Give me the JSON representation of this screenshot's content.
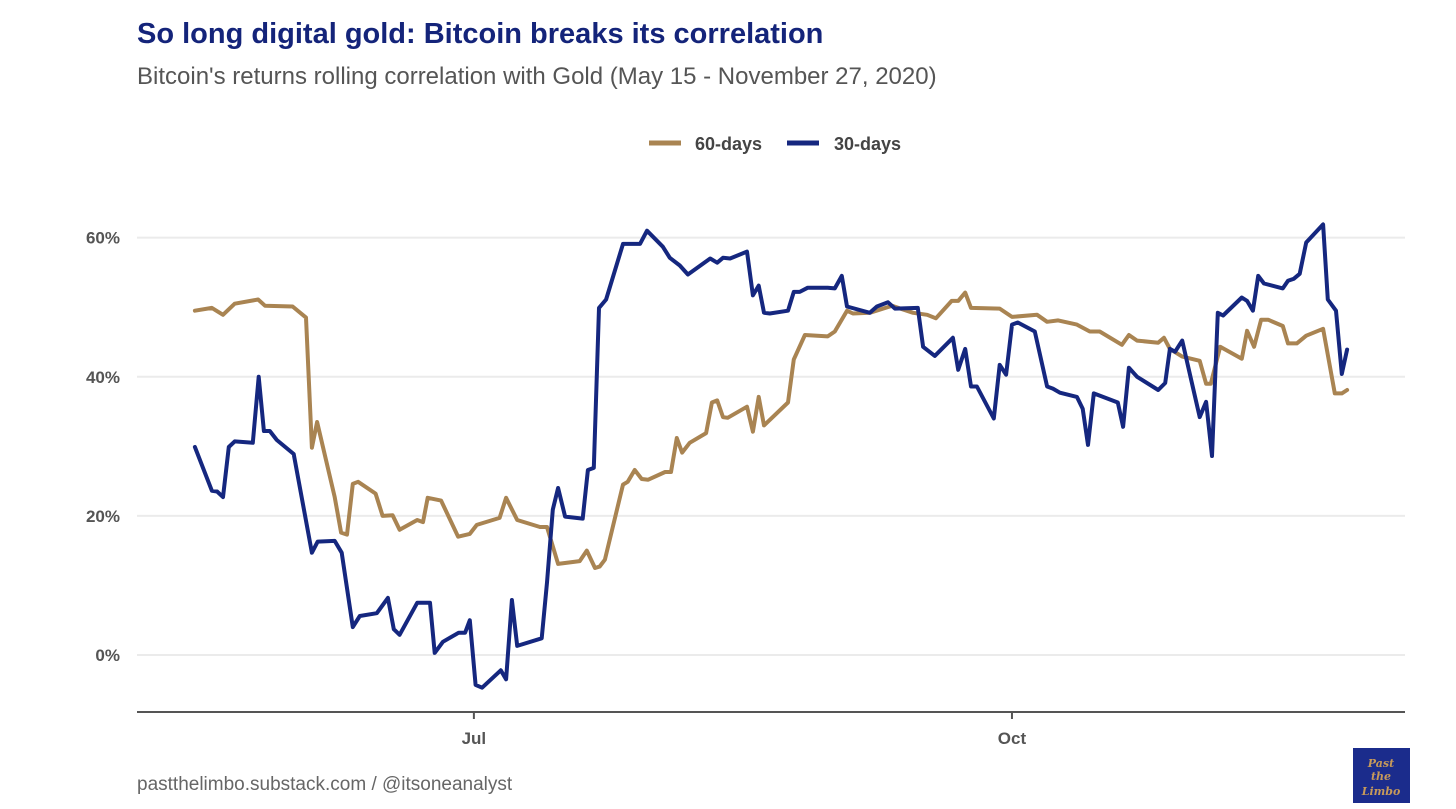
{
  "chart_data": {
    "type": "line",
    "title": "So long digital gold: Bitcoin breaks its correlation",
    "subtitle": "Bitcoin's returns rolling correlation with Gold (May 15 - November 27, 2020)",
    "xlabel": "",
    "ylabel": "",
    "x_unit": "days since 2020-05-15",
    "xlim": [
      -10.6,
      206.2
    ],
    "ylim": [
      -8.2,
      68
    ],
    "x_ticks": [
      {
        "value": 47,
        "label": "Jul"
      },
      {
        "value": 139,
        "label": "Oct"
      }
    ],
    "y_ticks": [
      {
        "value": 0,
        "label": "0%"
      },
      {
        "value": 20,
        "label": "20%"
      },
      {
        "value": 40,
        "label": "40%"
      },
      {
        "value": 60,
        "label": "60%"
      }
    ],
    "grid": "horizontal",
    "legend_position": "top-center",
    "colors": {
      "title": "#14247a",
      "gold60": "#a98452",
      "blue30": "#15277f",
      "grid": "#ebebeb",
      "axis": "#555555"
    },
    "series": [
      {
        "name": "60-days",
        "color": "#a98452",
        "points": [
          [
            -0.7,
            49.5
          ],
          [
            2.2,
            49.9
          ],
          [
            4.1,
            48.9
          ],
          [
            6.1,
            50.5
          ],
          [
            10.1,
            51.1
          ],
          [
            11.3,
            50.2
          ],
          [
            16.0,
            50.1
          ],
          [
            18.3,
            48.5
          ],
          [
            19.3,
            29.8
          ],
          [
            20.2,
            33.5
          ],
          [
            23.2,
            22.7
          ],
          [
            24.3,
            17.6
          ],
          [
            25.3,
            17.3
          ],
          [
            26.3,
            24.6
          ],
          [
            27.2,
            24.9
          ],
          [
            30.2,
            23.2
          ],
          [
            31.4,
            20.0
          ],
          [
            33.1,
            20.1
          ],
          [
            34.3,
            18.0
          ],
          [
            37.3,
            19.4
          ],
          [
            38.3,
            19.1
          ],
          [
            39.1,
            22.6
          ],
          [
            41.4,
            22.2
          ],
          [
            44.3,
            17.0
          ],
          [
            46.3,
            17.4
          ],
          [
            47.5,
            18.7
          ],
          [
            51.4,
            19.7
          ],
          [
            52.5,
            22.6
          ],
          [
            54.4,
            19.4
          ],
          [
            58.3,
            18.4
          ],
          [
            59.5,
            18.4
          ],
          [
            61.4,
            13.1
          ],
          [
            65.1,
            13.5
          ],
          [
            66.3,
            15.0
          ],
          [
            67.7,
            12.5
          ],
          [
            68.5,
            12.7
          ],
          [
            69.4,
            13.7
          ],
          [
            72.5,
            24.5
          ],
          [
            73.3,
            24.9
          ],
          [
            74.5,
            26.6
          ],
          [
            75.7,
            25.3
          ],
          [
            76.8,
            25.2
          ],
          [
            79.7,
            26.3
          ],
          [
            80.7,
            26.3
          ],
          [
            81.7,
            31.2
          ],
          [
            82.6,
            29.1
          ],
          [
            83.9,
            30.5
          ],
          [
            86.7,
            31.9
          ],
          [
            87.7,
            36.3
          ],
          [
            88.6,
            36.6
          ],
          [
            89.6,
            34.2
          ],
          [
            90.4,
            34.1
          ],
          [
            93.7,
            35.7
          ],
          [
            94.7,
            32.1
          ],
          [
            95.7,
            37.1
          ],
          [
            96.6,
            33.0
          ],
          [
            100.7,
            36.3
          ],
          [
            101.7,
            42.5
          ],
          [
            103.6,
            46.0
          ],
          [
            107.5,
            45.8
          ],
          [
            108.7,
            46.5
          ],
          [
            110.8,
            49.5
          ],
          [
            111.8,
            49.1
          ],
          [
            114.7,
            49.2
          ],
          [
            118.5,
            50.2
          ],
          [
            122.1,
            49.2
          ],
          [
            124.5,
            48.9
          ],
          [
            126.0,
            48.4
          ],
          [
            128.7,
            50.9
          ],
          [
            129.8,
            50.9
          ],
          [
            131.0,
            52.1
          ],
          [
            132.0,
            49.9
          ],
          [
            136.9,
            49.8
          ],
          [
            139.0,
            48.6
          ],
          [
            143.3,
            48.9
          ],
          [
            145.0,
            47.9
          ],
          [
            146.9,
            48.1
          ],
          [
            150.1,
            47.5
          ],
          [
            152.3,
            46.5
          ],
          [
            154.0,
            46.5
          ],
          [
            157.8,
            44.6
          ],
          [
            159.0,
            46.0
          ],
          [
            160.4,
            45.2
          ],
          [
            164.0,
            44.9
          ],
          [
            165.0,
            45.6
          ],
          [
            166.0,
            44.0
          ],
          [
            168.1,
            42.9
          ],
          [
            171.1,
            42.3
          ],
          [
            172.2,
            39.0
          ],
          [
            173.0,
            39.0
          ],
          [
            174.6,
            44.3
          ],
          [
            178.3,
            42.6
          ],
          [
            179.2,
            46.6
          ],
          [
            180.4,
            44.3
          ],
          [
            181.6,
            48.2
          ],
          [
            182.8,
            48.2
          ],
          [
            185.3,
            47.3
          ],
          [
            186.2,
            44.8
          ],
          [
            187.7,
            44.8
          ],
          [
            189.3,
            45.9
          ],
          [
            192.2,
            46.9
          ],
          [
            194.2,
            37.6
          ],
          [
            195.4,
            37.6
          ],
          [
            196.3,
            38.1
          ]
        ]
      },
      {
        "name": "30-days",
        "color": "#15277f",
        "points": [
          [
            -0.7,
            29.9
          ],
          [
            2.2,
            23.6
          ],
          [
            3.1,
            23.5
          ],
          [
            4.1,
            22.7
          ],
          [
            5.1,
            29.9
          ],
          [
            6.1,
            30.7
          ],
          [
            9.2,
            30.5
          ],
          [
            10.2,
            40.0
          ],
          [
            11.1,
            32.2
          ],
          [
            12.1,
            32.2
          ],
          [
            13.3,
            30.9
          ],
          [
            16.2,
            28.9
          ],
          [
            19.3,
            14.7
          ],
          [
            20.3,
            16.3
          ],
          [
            23.2,
            16.4
          ],
          [
            24.4,
            14.7
          ],
          [
            26.3,
            4.0
          ],
          [
            27.5,
            5.6
          ],
          [
            30.4,
            6.0
          ],
          [
            32.3,
            8.2
          ],
          [
            33.3,
            3.7
          ],
          [
            34.3,
            2.9
          ],
          [
            37.3,
            7.5
          ],
          [
            39.5,
            7.5
          ],
          [
            40.3,
            0.3
          ],
          [
            41.7,
            1.9
          ],
          [
            44.4,
            3.2
          ],
          [
            45.5,
            3.2
          ],
          [
            46.3,
            5.0
          ],
          [
            47.3,
            -4.3
          ],
          [
            48.4,
            -4.7
          ],
          [
            51.6,
            -2.2
          ],
          [
            52.5,
            -3.5
          ],
          [
            53.5,
            7.9
          ],
          [
            54.4,
            1.3
          ],
          [
            58.6,
            2.4
          ],
          [
            59.5,
            10.4
          ],
          [
            60.5,
            20.9
          ],
          [
            61.4,
            24.0
          ],
          [
            62.6,
            19.9
          ],
          [
            65.6,
            19.6
          ],
          [
            66.5,
            26.6
          ],
          [
            67.5,
            26.9
          ],
          [
            68.4,
            49.9
          ],
          [
            69.6,
            51.1
          ],
          [
            72.5,
            59.1
          ],
          [
            75.4,
            59.1
          ],
          [
            76.6,
            61.0
          ],
          [
            79.3,
            58.7
          ],
          [
            80.5,
            57.1
          ],
          [
            82.2,
            56.0
          ],
          [
            83.6,
            54.7
          ],
          [
            87.4,
            57.0
          ],
          [
            88.6,
            56.4
          ],
          [
            89.6,
            57.1
          ],
          [
            90.8,
            57.0
          ],
          [
            93.7,
            58.0
          ],
          [
            94.7,
            51.7
          ],
          [
            95.7,
            53.1
          ],
          [
            96.6,
            49.2
          ],
          [
            97.6,
            49.1
          ],
          [
            100.7,
            49.5
          ],
          [
            101.7,
            52.2
          ],
          [
            102.7,
            52.2
          ],
          [
            104.1,
            52.8
          ],
          [
            107.5,
            52.8
          ],
          [
            108.7,
            52.7
          ],
          [
            109.9,
            54.5
          ],
          [
            110.8,
            50.1
          ],
          [
            114.7,
            49.2
          ],
          [
            115.9,
            50.1
          ],
          [
            117.8,
            50.7
          ],
          [
            119.0,
            49.8
          ],
          [
            122.9,
            49.9
          ],
          [
            123.8,
            44.3
          ],
          [
            125.8,
            43.0
          ],
          [
            128.9,
            45.6
          ],
          [
            129.8,
            41.0
          ],
          [
            131.0,
            44.0
          ],
          [
            132.0,
            38.6
          ],
          [
            133.0,
            38.6
          ],
          [
            135.9,
            34.0
          ],
          [
            136.9,
            41.7
          ],
          [
            138.0,
            40.3
          ],
          [
            139.0,
            47.5
          ],
          [
            140.0,
            47.8
          ],
          [
            142.9,
            46.5
          ],
          [
            145.0,
            38.6
          ],
          [
            146.0,
            38.3
          ],
          [
            147.2,
            37.7
          ],
          [
            150.1,
            37.1
          ],
          [
            151.1,
            35.4
          ],
          [
            152.0,
            30.2
          ],
          [
            153.0,
            37.6
          ],
          [
            157.1,
            36.3
          ],
          [
            158.0,
            32.8
          ],
          [
            159.0,
            41.3
          ],
          [
            160.4,
            40.0
          ],
          [
            164.0,
            38.1
          ],
          [
            165.2,
            39.1
          ],
          [
            166.0,
            44.0
          ],
          [
            166.9,
            43.6
          ],
          [
            168.1,
            45.2
          ],
          [
            171.1,
            34.2
          ],
          [
            172.2,
            36.4
          ],
          [
            173.2,
            28.6
          ],
          [
            174.2,
            49.2
          ],
          [
            175.1,
            48.8
          ],
          [
            178.3,
            51.4
          ],
          [
            179.2,
            50.9
          ],
          [
            180.2,
            49.5
          ],
          [
            181.1,
            54.5
          ],
          [
            182.1,
            53.4
          ],
          [
            185.3,
            52.7
          ],
          [
            186.2,
            53.8
          ],
          [
            187.2,
            54.1
          ],
          [
            188.2,
            54.8
          ],
          [
            189.3,
            59.3
          ],
          [
            192.2,
            61.9
          ],
          [
            193.0,
            51.1
          ],
          [
            194.4,
            49.5
          ],
          [
            195.4,
            40.4
          ],
          [
            196.3,
            43.9
          ]
        ]
      }
    ]
  },
  "legend": {
    "items": [
      {
        "label": "60-days",
        "color": "#a98452"
      },
      {
        "label": "30-days",
        "color": "#15277f"
      }
    ]
  },
  "footer": {
    "source": "pastthelimbo.substack.com / @itsoneanalyst"
  },
  "logo": {
    "text": [
      "Past",
      "the",
      "Limbo"
    ],
    "bg": "#1b2c8c",
    "fg": "#c79a5a"
  }
}
